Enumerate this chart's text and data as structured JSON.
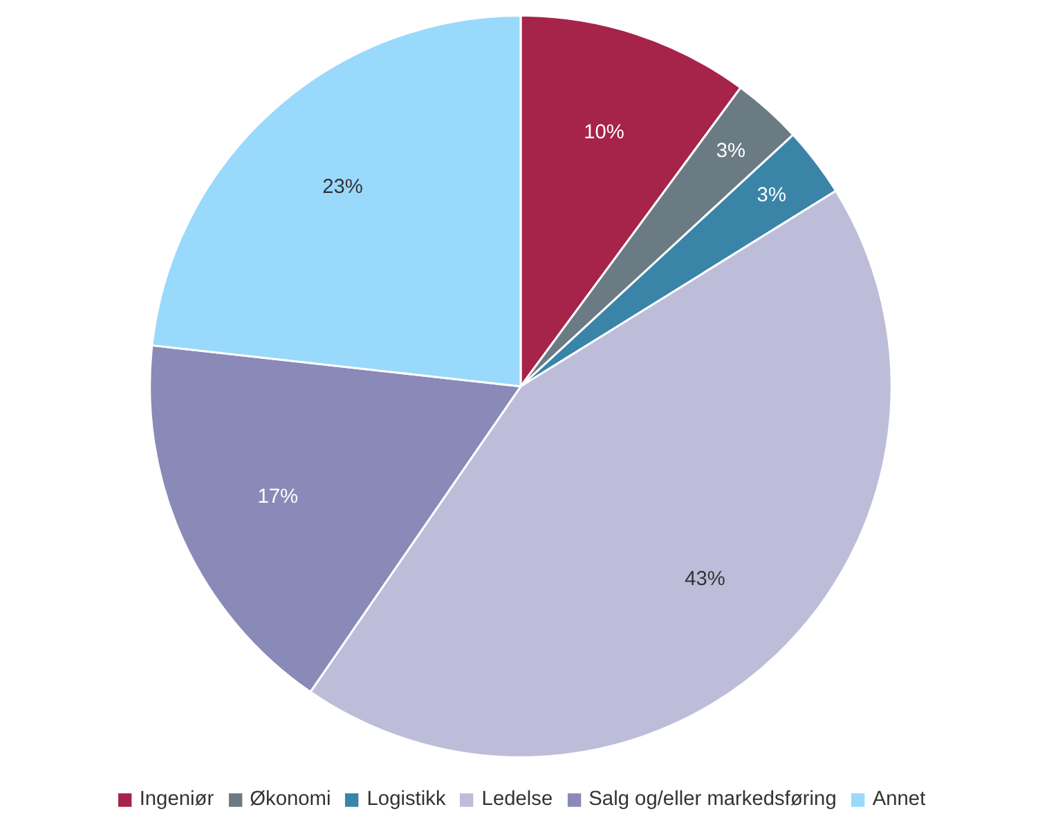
{
  "chart_data": {
    "type": "pie",
    "categories": [
      "Ingeniør",
      "Økonomi",
      "Logistikk",
      "Ledelse",
      "Salg og/eller markedsføring",
      "Annet"
    ],
    "values": [
      10,
      3,
      3,
      43,
      17,
      23
    ],
    "value_labels": [
      "10%",
      "3%",
      "3%",
      "43%",
      "17%",
      "23%"
    ],
    "colors": [
      "#a6234a",
      "#6b7b84",
      "#3a84a8",
      "#bdbdda",
      "#8a8ab8",
      "#99d9fc"
    ],
    "legend": "bottom"
  }
}
